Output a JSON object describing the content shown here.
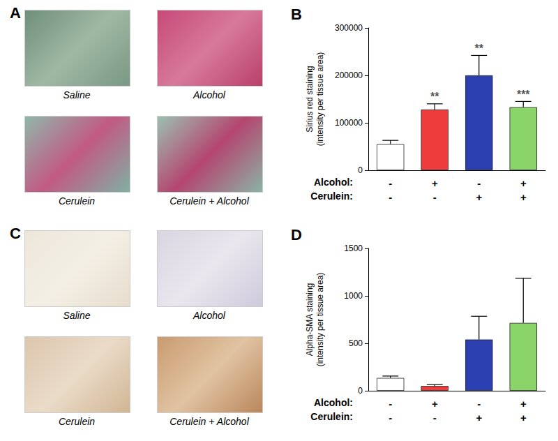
{
  "image_panels": [
    {
      "label": "A",
      "captions": [
        "Saline",
        "Alcohol",
        "Cerulein",
        "Cerulein + Alcohol"
      ]
    },
    {
      "label": "C",
      "captions": [
        "Saline",
        "Alcohol",
        "Cerulein",
        "Cerulein + Alcohol"
      ]
    }
  ],
  "chart_data": [
    {
      "type": "bar",
      "title": "B",
      "y_label": "Sirius red staining\n(intensity per tissue area)",
      "factor_rows": [
        {
          "name": "Alcohol:",
          "levels": [
            "-",
            "+",
            "-",
            "+"
          ]
        },
        {
          "name": "Cerulein:",
          "levels": [
            "-",
            "-",
            "+",
            "+"
          ]
        }
      ],
      "values": [
        55000,
        128000,
        200000,
        133000
      ],
      "errors": [
        8000,
        12000,
        42000,
        12000
      ],
      "annotations": [
        null,
        "**",
        "**",
        "***"
      ],
      "colors": [
        "#ffffff",
        "#ee3b3b",
        "#2b3fb0",
        "#8ad46a"
      ],
      "ylim": [
        0,
        300000
      ],
      "yticks": [
        0,
        100000,
        200000,
        300000
      ],
      "grid": false
    },
    {
      "type": "bar",
      "title": "D",
      "y_label": "Alpha-SMA staining\n(intensity per tissue area)",
      "factor_rows": [
        {
          "name": "Alcohol:",
          "levels": [
            "-",
            "+",
            "-",
            "+"
          ]
        },
        {
          "name": "Cerulein:",
          "levels": [
            "-",
            "-",
            "+",
            "+"
          ]
        }
      ],
      "values": [
        135,
        50,
        540,
        715
      ],
      "errors": [
        20,
        15,
        245,
        470
      ],
      "colors": [
        "#ffffff",
        "#ee3b3b",
        "#2b3fb0",
        "#8ad46a"
      ],
      "ylim": [
        0,
        1500
      ],
      "yticks": [
        0,
        500,
        1000,
        1500
      ],
      "grid": false
    }
  ]
}
